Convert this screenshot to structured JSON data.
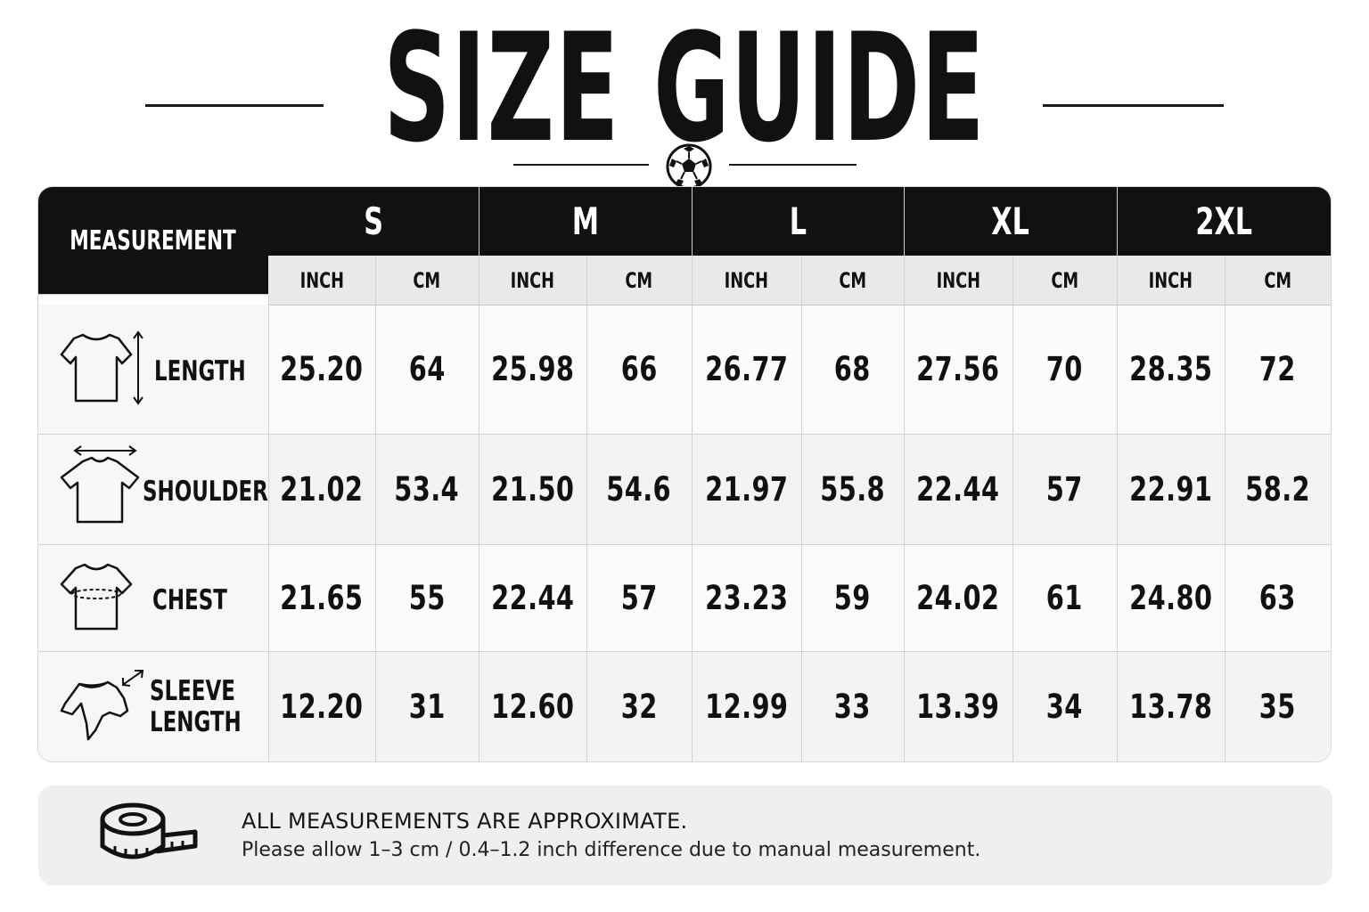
{
  "title": "SIZE GUIDE",
  "icons": {
    "ball": "soccer-ball-icon",
    "tape": "measuring-tape-icon"
  },
  "table": {
    "measurement_header": "MEASUREMENT",
    "sizes": [
      "S",
      "M",
      "L",
      "XL",
      "2XL"
    ],
    "unit_labels": {
      "inch": "INCH",
      "cm": "CM"
    },
    "units": [
      "INCH",
      "CM",
      "INCH",
      "CM",
      "INCH",
      "CM",
      "INCH",
      "CM",
      "INCH",
      "CM"
    ],
    "rows": [
      {
        "label_lines": [
          "LENGTH"
        ],
        "icon": "tshirt-length-icon",
        "values": [
          "25.20",
          "64",
          "25.98",
          "66",
          "26.77",
          "68",
          "27.56",
          "70",
          "28.35",
          "72"
        ]
      },
      {
        "label_lines": [
          "SHOULDER"
        ],
        "icon": "tshirt-shoulder-icon",
        "values": [
          "21.02",
          "53.4",
          "21.50",
          "54.6",
          "21.97",
          "55.8",
          "22.44",
          "57",
          "22.91",
          "58.2"
        ]
      },
      {
        "label_lines": [
          "CHEST"
        ],
        "icon": "tshirt-chest-icon",
        "values": [
          "21.65",
          "55",
          "22.44",
          "57",
          "23.23",
          "59",
          "24.02",
          "61",
          "24.80",
          "63"
        ]
      },
      {
        "label_lines": [
          "SLEEVE",
          "LENGTH"
        ],
        "icon": "tshirt-sleeve-icon",
        "values": [
          "12.20",
          "31",
          "12.60",
          "32",
          "12.99",
          "33",
          "13.39",
          "34",
          "13.78",
          "35"
        ]
      }
    ]
  },
  "note": {
    "title": "ALL MEASUREMENTS ARE APPROXIMATE.",
    "body": "Please allow 1–3 cm / 0.4–1.2 inch difference due to manual measurement."
  },
  "colors": {
    "header_bg": "#111111",
    "header_text": "#ffffff",
    "unit_row_bg": "#e9e9e9",
    "note_bg": "#efefef"
  }
}
